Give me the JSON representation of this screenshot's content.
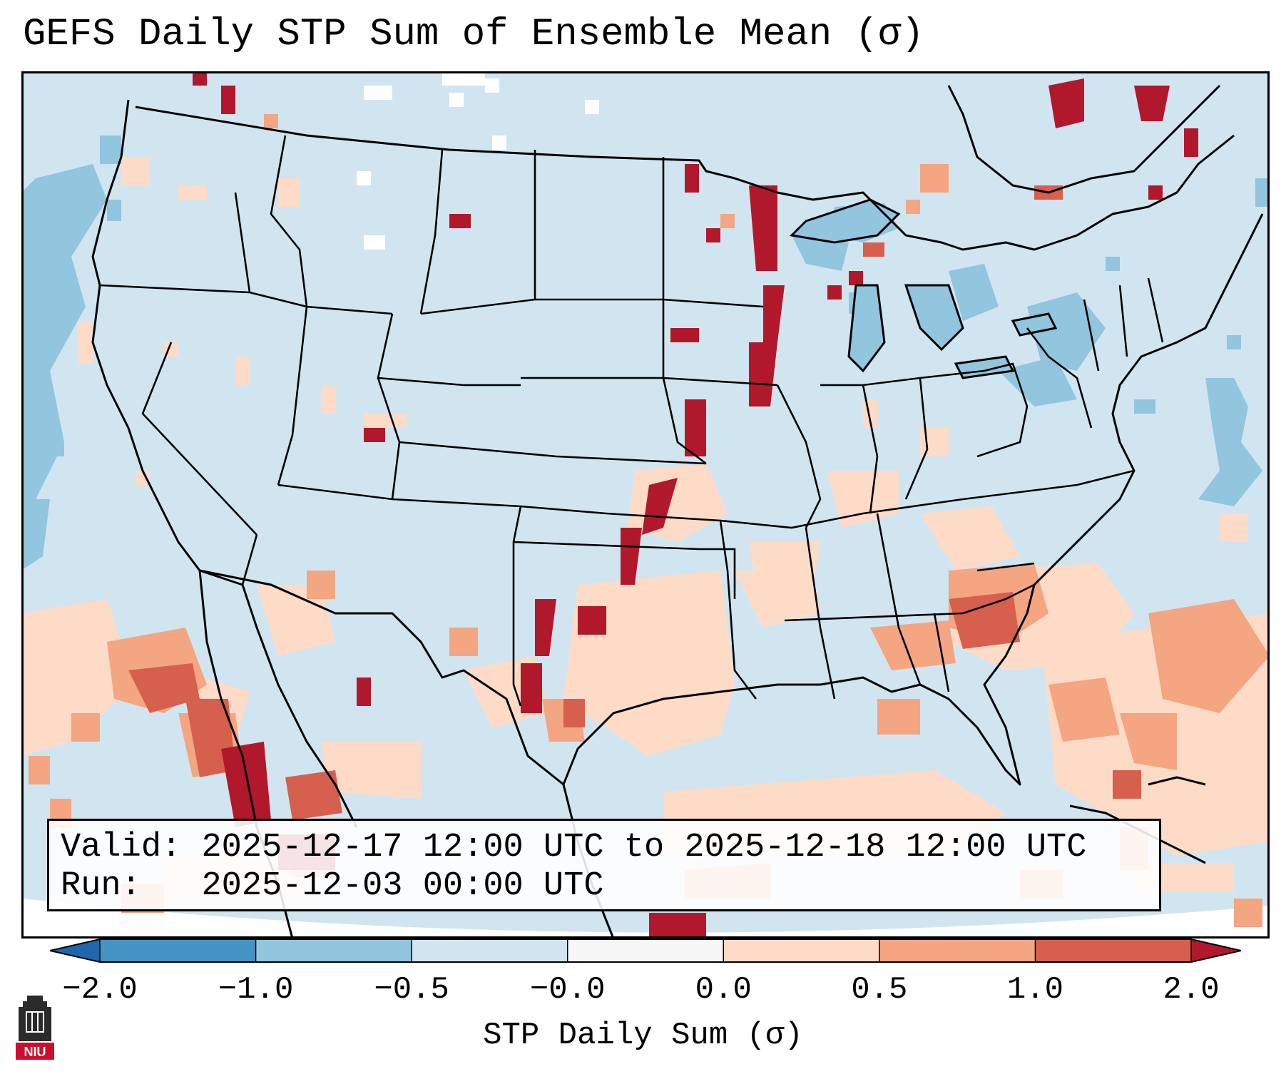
{
  "title": "GEFS Daily STP Sum of Ensemble Mean (σ)",
  "info": {
    "valid_label": "Valid:",
    "valid_text": "2025-12-17 12:00 UTC to 2025-12-18 12:00 UTC",
    "run_label": "Run:",
    "run_text": "2025-12-03 00:00 UTC"
  },
  "colorbar": {
    "label": "STP Daily Sum (σ)",
    "ticks": [
      "−2.0",
      "−1.0",
      "−0.5",
      "−0.0",
      "0.0",
      "0.5",
      "1.0",
      "2.0"
    ],
    "bins": [
      {
        "range": "< -2.0",
        "color": "#2166ac"
      },
      {
        "range": "-2.0 to -1.0",
        "color": "#4393c3"
      },
      {
        "range": "-1.0 to -0.5",
        "color": "#92c5de"
      },
      {
        "range": "-0.5 to -0.0",
        "color": "#d1e5f0"
      },
      {
        "range": "-0.0 to 0.0",
        "color": "#f7f7f7"
      },
      {
        "range": "0.0 to 0.5",
        "color": "#fddbc7"
      },
      {
        "range": "0.5 to 1.0",
        "color": "#f4a582"
      },
      {
        "range": "1.0 to 2.0",
        "color": "#d6604d"
      },
      {
        "range": "> 2.0",
        "color": "#b2182b"
      }
    ]
  },
  "map": {
    "region": "Contiguous United States",
    "background_color": "#d1e5f0",
    "features": [
      "state borders",
      "international borders",
      "coastlines",
      "Great Lakes"
    ]
  },
  "logo": {
    "name": "NIU",
    "text": "NIU",
    "color": "#c8102e"
  }
}
